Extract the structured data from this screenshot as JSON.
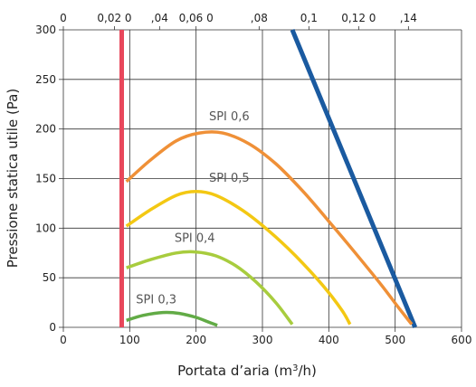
{
  "chart_data": {
    "type": "line",
    "xlabel_prefix": "Portata d’aria (m",
    "xlabel_sup": "3",
    "xlabel_suffix": "/h)",
    "ylabel": "Pressione statica utile (Pa)",
    "xlim": [
      0,
      600
    ],
    "ylim": [
      0,
      300
    ],
    "x_ticks": [
      "0",
      "100",
      "200",
      "300",
      "400",
      "500",
      "600"
    ],
    "y_ticks": [
      "0",
      "50",
      "100",
      "150",
      "200",
      "250",
      "300"
    ],
    "top_ticks": [
      {
        "x": 0,
        "label": "0"
      },
      {
        "x": 77,
        "label": "0,02 0"
      },
      {
        "x": 145,
        "label": ",04"
      },
      {
        "x": 200,
        "label": "0,06 0"
      },
      {
        "x": 295,
        "label": ",08"
      },
      {
        "x": 370,
        "label": "0,1"
      },
      {
        "x": 445,
        "label": "0,12 0"
      },
      {
        "x": 520,
        "label": ",14"
      }
    ],
    "grid": true,
    "series": [
      {
        "name": "",
        "color": "#e8475b",
        "kind": "limit",
        "x": [
          88,
          88
        ],
        "y": [
          0,
          300
        ]
      },
      {
        "name": "",
        "color": "#1a5aa0",
        "kind": "limit",
        "x": [
          345,
          530
        ],
        "y": [
          300,
          0
        ]
      },
      {
        "name": "",
        "color": "#ef9037",
        "x": [
          95,
          130,
          170,
          205,
          240,
          280,
          320,
          360,
          400,
          440,
          480,
          505,
          525
        ],
        "y": [
          147,
          168,
          188,
          196,
          196,
          185,
          165,
          138,
          107,
          75,
          42,
          20,
          3
        ]
      },
      {
        "name": "",
        "color": "#f3c813",
        "x": [
          95,
          130,
          170,
          200,
          230,
          270,
          310,
          350,
          390,
          420,
          432
        ],
        "y": [
          102,
          118,
          133,
          137,
          133,
          118,
          97,
          72,
          43,
          17,
          3
        ]
      },
      {
        "name": "",
        "color": "#a8cc3e",
        "x": [
          95,
          130,
          170,
          200,
          230,
          260,
          290,
          320,
          345
        ],
        "y": [
          60,
          68,
          75,
          76,
          72,
          62,
          46,
          25,
          3
        ]
      },
      {
        "name": "",
        "color": "#62ab46",
        "x": [
          95,
          120,
          150,
          175,
          200,
          220,
          232
        ],
        "y": [
          7,
          12,
          15,
          14,
          10,
          5,
          2
        ]
      }
    ],
    "annotations": [
      {
        "text": "SPI 0,6",
        "x": 250,
        "y": 209
      },
      {
        "text": "SPI 0,5",
        "x": 250,
        "y": 147
      },
      {
        "text": "SPI 0,4",
        "x": 198,
        "y": 86
      },
      {
        "text": "SPI 0,3",
        "x": 140,
        "y": 24
      }
    ]
  }
}
